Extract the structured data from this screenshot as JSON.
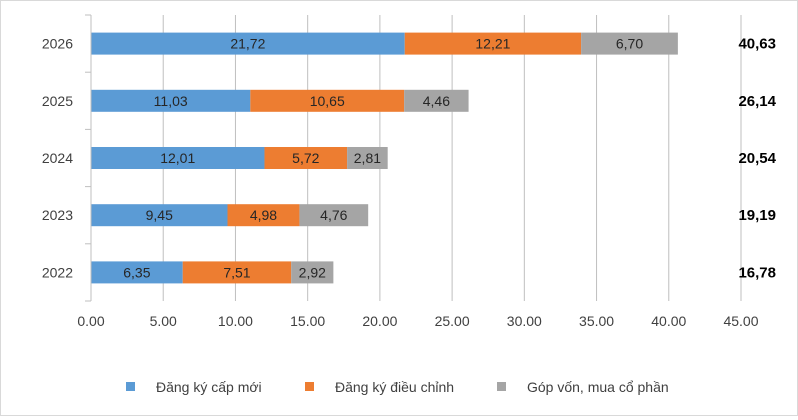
{
  "chart_data": {
    "type": "bar",
    "orientation": "horizontal",
    "stacked": true,
    "categories": [
      "2026",
      "2025",
      "2024",
      "2023",
      "2022"
    ],
    "series": [
      {
        "name": "Đăng ký cấp mới",
        "color": "#5B9BD5",
        "values": [
          21.72,
          11.03,
          12.01,
          9.45,
          6.35
        ],
        "labels": [
          "21,72",
          "11,03",
          "12,01",
          "9,45",
          "6,35"
        ]
      },
      {
        "name": "Đăng ký điều chỉnh",
        "color": "#ED7D31",
        "values": [
          12.21,
          10.65,
          5.72,
          4.98,
          7.51
        ],
        "labels": [
          "12,21",
          "10,65",
          "5,72",
          "4,98",
          "7,51"
        ]
      },
      {
        "name": "Góp vốn, mua cổ phần",
        "color": "#A5A5A5",
        "values": [
          6.7,
          4.46,
          2.81,
          4.76,
          2.92
        ],
        "labels": [
          "6,70",
          "4,46",
          "2,81",
          "4,76",
          "2,92"
        ]
      }
    ],
    "totals": [
      "40,63",
      "26,14",
      "20,54",
      "19,19",
      "16,78"
    ],
    "xlim": [
      0,
      45
    ],
    "x_ticks": [
      "0.00",
      "5.00",
      "10.00",
      "15.00",
      "20.00",
      "25.00",
      "30.00",
      "35.00",
      "40.00",
      "45.00"
    ],
    "grid": "vertical",
    "legend_position": "bottom",
    "title": "",
    "xlabel": "",
    "ylabel": ""
  }
}
